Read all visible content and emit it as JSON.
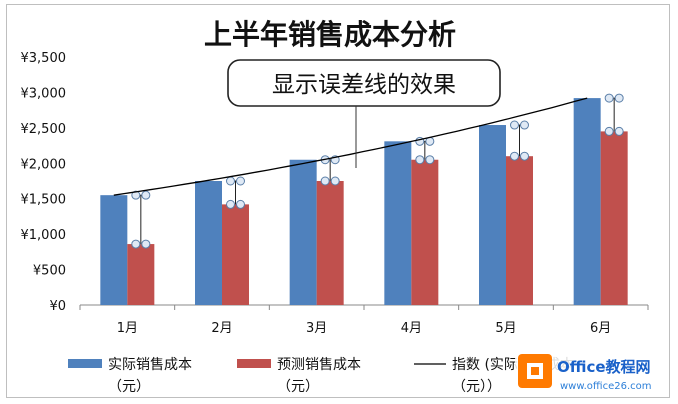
{
  "chart_data": {
    "type": "bar",
    "title": "上半年销售成本分析",
    "categories": [
      "1月",
      "2月",
      "3月",
      "4月",
      "5月",
      "6月"
    ],
    "series": [
      {
        "name": "实际销售成本（元）",
        "values": [
          1550,
          1750,
          2050,
          2310,
          2540,
          2920
        ],
        "color": "#4f81bd"
      },
      {
        "name": "预测销售成本（元）",
        "values": [
          860,
          1420,
          1750,
          2050,
          2100,
          2450
        ],
        "color": "#c0504d"
      }
    ],
    "trendline": {
      "name": "指数 (实际销售成本（元）)",
      "type": "exponential",
      "color": "#000000"
    },
    "error_bars": {
      "series": "预测销售成本（元）",
      "direction": "plus",
      "to_series": "实际销售成本（元）"
    },
    "y_ticks": [
      "¥0",
      "¥500",
      "¥1,000",
      "¥1,500",
      "¥2,000",
      "¥2,500",
      "¥3,000",
      "¥3,500"
    ],
    "ylim": [
      0,
      3500
    ],
    "legend_position": "bottom",
    "annotation": "显示误差线的效果",
    "xlabel": "",
    "ylabel": ""
  },
  "legend": {
    "actual_line1": "实际销售成本",
    "actual_line2": "（元）",
    "forecast_line1": "预测销售成本",
    "forecast_line2": "（元）",
    "trend_line1": "指数 (实际销售成本",
    "trend_line2": "（元））"
  },
  "watermark": {
    "logo_text": "Office教程网",
    "url": "www.office26.com"
  }
}
